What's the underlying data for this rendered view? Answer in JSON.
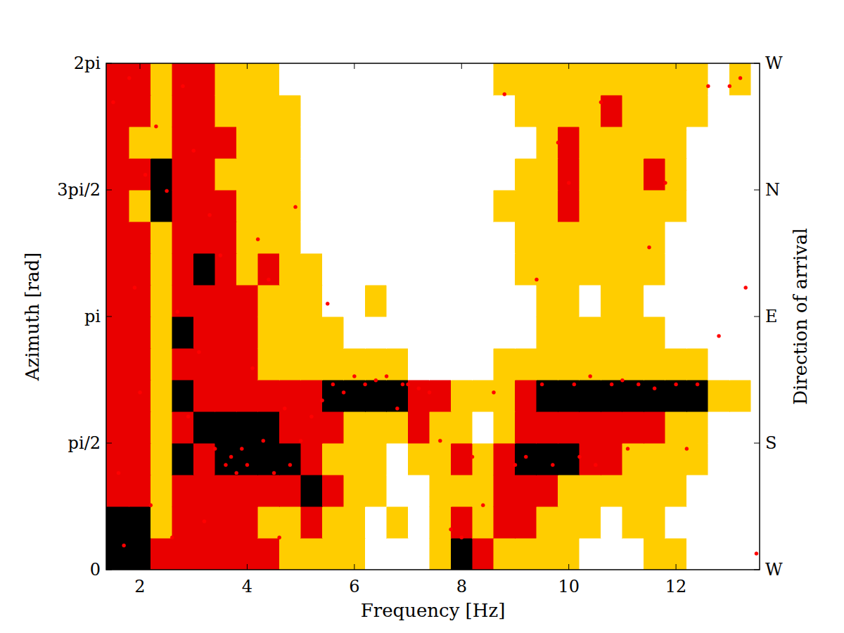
{
  "chart_data": {
    "type": "heatmap",
    "x_label": "Frequency [Hz]",
    "y_label": "Azimuth [rad]",
    "y2_label": "Direction of arrival",
    "xlim": [
      1.37,
      13.56
    ],
    "ylim": [
      0,
      6.2832
    ],
    "y2lim": [
      0,
      6.2832
    ],
    "xticks": [
      2,
      4,
      6,
      8,
      10,
      12
    ],
    "yticks": [
      0,
      {
        "value": 1.5708,
        "label": "pi/2"
      },
      {
        "value": 3.1416,
        "label": "pi"
      },
      {
        "value": 4.7124,
        "label": "3pi/2"
      },
      {
        "value": 6.2832,
        "label": "2pi"
      }
    ],
    "y2ticks": [
      {
        "value": 0,
        "label": "W"
      },
      {
        "value": 1.5708,
        "label": "S"
      },
      {
        "value": 3.1416,
        "label": "E"
      },
      {
        "value": 4.7124,
        "label": "N"
      },
      {
        "value": 6.2832,
        "label": "W"
      }
    ],
    "grid": false,
    "zlim": [
      0,
      3
    ],
    "x_edges": [
      1.37,
      1.8,
      2.2,
      2.6,
      3.0,
      3.4,
      3.8,
      4.2,
      4.6,
      5.0,
      5.4,
      5.8,
      6.2,
      6.6,
      7.0,
      7.4,
      7.8,
      8.2,
      8.6,
      9.0,
      9.4,
      9.8,
      10.2,
      10.6,
      11.0,
      11.4,
      11.8,
      12.2,
      12.6,
      13.0,
      13.4,
      13.56
    ],
    "y_edges": [
      0,
      0.3927,
      0.7854,
      1.1781,
      1.5708,
      1.9635,
      2.3562,
      2.7489,
      3.1416,
      3.5343,
      3.927,
      4.3197,
      4.7124,
      5.1051,
      5.4978,
      5.8905,
      6.2832
    ],
    "cells": [
      [
        3,
        3,
        2,
        2,
        2,
        2,
        2,
        2,
        1,
        1,
        1,
        1,
        0,
        0,
        0,
        1,
        3,
        2,
        1,
        1,
        1,
        1,
        0,
        0,
        0,
        1,
        1,
        0,
        0,
        0,
        0
      ],
      [
        3,
        3,
        1,
        2,
        2,
        2,
        2,
        1,
        1,
        2,
        1,
        1,
        0,
        1,
        0,
        1,
        2,
        1,
        2,
        2,
        1,
        1,
        1,
        0,
        1,
        1,
        0,
        0,
        0,
        0,
        0
      ],
      [
        2,
        2,
        1,
        2,
        2,
        2,
        2,
        2,
        2,
        3,
        2,
        1,
        1,
        0,
        0,
        1,
        1,
        1,
        2,
        2,
        2,
        1,
        1,
        1,
        1,
        1,
        1,
        0,
        0,
        0,
        0
      ],
      [
        2,
        2,
        1,
        3,
        2,
        3,
        3,
        3,
        3,
        2,
        1,
        1,
        1,
        0,
        1,
        1,
        2,
        1,
        2,
        3,
        3,
        3,
        2,
        2,
        1,
        1,
        1,
        1,
        0,
        0,
        0
      ],
      [
        2,
        2,
        1,
        2,
        3,
        3,
        3,
        3,
        2,
        2,
        2,
        1,
        1,
        1,
        2,
        1,
        1,
        0,
        1,
        2,
        2,
        2,
        2,
        2,
        2,
        2,
        1,
        1,
        0,
        0,
        0
      ],
      [
        2,
        2,
        1,
        3,
        2,
        2,
        2,
        2,
        2,
        2,
        3,
        3,
        3,
        3,
        2,
        2,
        1,
        1,
        1,
        2,
        3,
        3,
        3,
        3,
        3,
        3,
        3,
        3,
        1,
        1,
        0
      ],
      [
        2,
        2,
        1,
        2,
        2,
        2,
        2,
        1,
        1,
        1,
        1,
        1,
        1,
        1,
        0,
        0,
        0,
        0,
        1,
        1,
        1,
        1,
        1,
        1,
        1,
        1,
        1,
        1,
        0,
        0,
        0
      ],
      [
        2,
        2,
        1,
        3,
        2,
        2,
        2,
        1,
        1,
        1,
        1,
        0,
        0,
        0,
        0,
        0,
        0,
        0,
        0,
        0,
        1,
        1,
        1,
        1,
        1,
        1,
        0,
        0,
        0,
        0,
        0
      ],
      [
        2,
        2,
        1,
        2,
        2,
        2,
        2,
        1,
        1,
        1,
        0,
        0,
        1,
        0,
        0,
        0,
        0,
        0,
        0,
        0,
        1,
        1,
        0,
        1,
        1,
        0,
        0,
        0,
        0,
        0,
        0
      ],
      [
        2,
        2,
        1,
        2,
        3,
        2,
        1,
        2,
        1,
        1,
        0,
        0,
        0,
        0,
        0,
        0,
        0,
        0,
        0,
        1,
        1,
        1,
        1,
        1,
        1,
        1,
        0,
        0,
        0,
        0,
        0
      ],
      [
        2,
        2,
        1,
        2,
        2,
        2,
        1,
        1,
        1,
        0,
        0,
        0,
        0,
        0,
        0,
        0,
        0,
        0,
        0,
        1,
        1,
        1,
        1,
        1,
        1,
        1,
        0,
        0,
        0,
        0,
        0
      ],
      [
        2,
        1,
        3,
        2,
        2,
        2,
        1,
        1,
        1,
        0,
        0,
        0,
        0,
        0,
        0,
        0,
        0,
        0,
        1,
        1,
        1,
        2,
        1,
        1,
        1,
        1,
        1,
        0,
        0,
        0,
        0
      ],
      [
        2,
        2,
        3,
        2,
        2,
        1,
        1,
        1,
        1,
        0,
        0,
        0,
        0,
        0,
        0,
        0,
        0,
        0,
        0,
        1,
        1,
        2,
        1,
        1,
        1,
        2,
        1,
        0,
        0,
        0,
        0
      ],
      [
        2,
        1,
        1,
        2,
        2,
        2,
        1,
        1,
        1,
        0,
        0,
        0,
        0,
        0,
        0,
        0,
        0,
        0,
        0,
        0,
        1,
        2,
        1,
        1,
        1,
        1,
        1,
        0,
        0,
        0,
        0
      ],
      [
        2,
        2,
        1,
        2,
        2,
        1,
        1,
        1,
        1,
        0,
        0,
        0,
        0,
        0,
        0,
        0,
        0,
        0,
        0,
        1,
        1,
        1,
        1,
        2,
        1,
        1,
        1,
        1,
        0,
        0,
        0
      ],
      [
        2,
        2,
        1,
        2,
        2,
        1,
        1,
        1,
        0,
        0,
        0,
        0,
        0,
        0,
        0,
        0,
        0,
        0,
        1,
        1,
        1,
        1,
        1,
        1,
        1,
        1,
        1,
        1,
        0,
        1,
        0
      ]
    ],
    "series": [
      {
        "type": "scatter",
        "color": "#ff0000",
        "marker": "circle",
        "x": [
          1.5,
          1.6,
          1.7,
          1.8,
          1.9,
          2.0,
          2.1,
          2.2,
          2.3,
          2.5,
          2.6,
          2.7,
          2.8,
          2.9,
          3.0,
          3.1,
          3.2,
          3.3,
          3.4,
          3.5,
          3.6,
          3.7,
          3.8,
          3.9,
          4.0,
          4.1,
          4.2,
          4.3,
          4.4,
          4.5,
          4.6,
          4.7,
          4.8,
          4.9,
          5.0,
          5.2,
          5.4,
          5.5,
          5.6,
          5.8,
          6.0,
          6.2,
          6.4,
          6.6,
          6.8,
          6.9,
          7.0,
          7.2,
          7.4,
          7.6,
          7.8,
          8.0,
          8.2,
          8.4,
          8.6,
          8.8,
          9.0,
          9.2,
          9.4,
          9.5,
          9.7,
          9.8,
          10.0,
          10.1,
          10.2,
          10.4,
          10.5,
          10.6,
          10.8,
          11.0,
          11.1,
          11.3,
          11.5,
          11.6,
          11.8,
          12.0,
          12.2,
          12.4,
          12.6,
          12.8,
          13.0,
          13.2,
          13.3,
          13.5
        ],
        "values": [
          5.8,
          1.2,
          0.3,
          6.1,
          3.5,
          2.2,
          4.9,
          0.8,
          5.5,
          4.7,
          0.4,
          3.2,
          6.0,
          1.9,
          5.2,
          2.7,
          0.6,
          4.4,
          1.5,
          3.9,
          1.3,
          1.4,
          1.2,
          1.5,
          1.3,
          2.5,
          4.1,
          1.6,
          3.6,
          1.2,
          0.4,
          2.0,
          1.3,
          4.5,
          1.6,
          1.9,
          2.1,
          3.3,
          2.3,
          2.2,
          2.4,
          2.3,
          2.35,
          2.4,
          2.0,
          2.3,
          2.3,
          2.25,
          2.2,
          1.6,
          0.5,
          0.4,
          1.4,
          0.8,
          2.2,
          5.9,
          1.3,
          1.4,
          3.6,
          2.3,
          1.3,
          5.3,
          4.8,
          2.3,
          1.4,
          2.4,
          1.3,
          5.8,
          2.3,
          2.35,
          1.5,
          2.3,
          4.0,
          2.25,
          4.8,
          2.3,
          1.5,
          2.3,
          6.0,
          2.9,
          6.0,
          6.1,
          3.5,
          0.2
        ]
      }
    ]
  }
}
